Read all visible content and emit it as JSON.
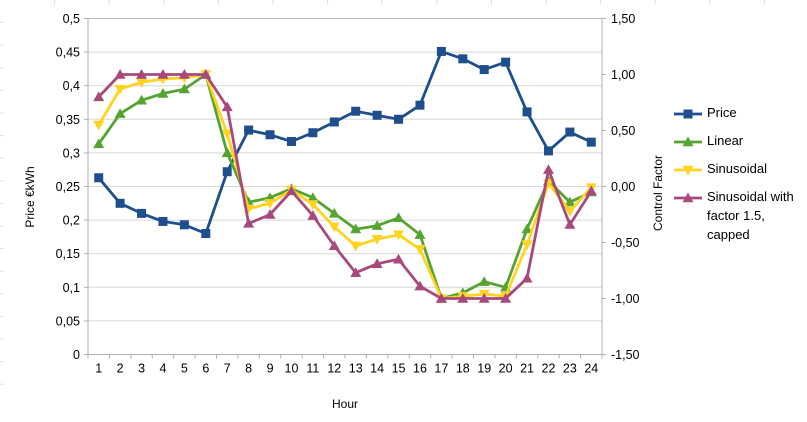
{
  "chart_data": {
    "type": "line",
    "title": "",
    "xlabel": "Hour",
    "legend_position": "right",
    "grid": "horizontal",
    "categories": [
      "1",
      "2",
      "3",
      "4",
      "5",
      "6",
      "7",
      "8",
      "9",
      "10",
      "11",
      "12",
      "13",
      "14",
      "15",
      "16",
      "17",
      "18",
      "19",
      "20",
      "21",
      "22",
      "23",
      "24"
    ],
    "axes": {
      "left": {
        "label": "Price €kWh",
        "min": 0,
        "max": 0.5,
        "tick_values": [
          0,
          0.05,
          0.1,
          0.15,
          0.2,
          0.25,
          0.3,
          0.35,
          0.4,
          0.45,
          0.5
        ],
        "tick_labels": [
          "0",
          "0,05",
          "0,1",
          "0,15",
          "0,2",
          "0,25",
          "0,3",
          "0,35",
          "0,4",
          "0,45",
          "0,5"
        ]
      },
      "right": {
        "label": "Control Factor",
        "min": -1.5,
        "max": 1.5,
        "tick_values": [
          -1.5,
          -1,
          -0.5,
          0,
          0.5,
          1,
          1.5
        ],
        "tick_labels": [
          "-1,50",
          "-1,00",
          "-0,50",
          "0,00",
          "0,50",
          "1,00",
          "1,50"
        ]
      }
    },
    "series": [
      {
        "name": "Price",
        "axis": "left",
        "color": "#1f4e8c",
        "marker": "square",
        "values": [
          0.263,
          0.225,
          0.21,
          0.198,
          0.193,
          0.18,
          0.272,
          0.334,
          0.327,
          0.317,
          0.33,
          0.346,
          0.362,
          0.356,
          0.35,
          0.371,
          0.451,
          0.44,
          0.424,
          0.435,
          0.361,
          0.303,
          0.331,
          0.316
        ]
      },
      {
        "name": "Linear",
        "axis": "right",
        "color": "#55a431",
        "marker": "triangle-up",
        "values": [
          0.38,
          0.65,
          0.77,
          0.83,
          0.87,
          1.0,
          0.3,
          -0.14,
          -0.1,
          -0.02,
          -0.1,
          -0.24,
          -0.38,
          -0.35,
          -0.28,
          -0.43,
          -1.0,
          -0.95,
          -0.85,
          -0.9,
          -0.38,
          0.05,
          -0.14,
          -0.05
        ]
      },
      {
        "name": "Sinusoidal",
        "axis": "right",
        "color": "#ffd320",
        "marker": "triangle-down",
        "values": [
          0.55,
          0.87,
          0.93,
          0.96,
          0.97,
          1.0,
          0.47,
          -0.2,
          -0.15,
          -0.03,
          -0.16,
          -0.36,
          -0.53,
          -0.47,
          -0.43,
          -0.56,
          -1.0,
          -0.98,
          -0.96,
          -0.98,
          -0.52,
          0.03,
          -0.22,
          -0.01
        ]
      },
      {
        "name": "Sinusoidal with factor 1.5, capped",
        "axis": "right",
        "color": "#a8497c",
        "marker": "triangle-up",
        "values": [
          0.8,
          1.0,
          1.0,
          1.0,
          1.0,
          1.0,
          0.71,
          -0.33,
          -0.25,
          -0.04,
          -0.26,
          -0.53,
          -0.77,
          -0.69,
          -0.65,
          -0.89,
          -1.0,
          -1.0,
          -1.0,
          -1.0,
          -0.82,
          0.15,
          -0.34,
          -0.04
        ]
      }
    ]
  },
  "style": {
    "gridline_color": "#d6d6d6",
    "top_gridline_color": "#b9b9b9",
    "axis_color": "#b0b0b0",
    "background_artifact_color": "#dcdcdc",
    "text_color": "#000000"
  }
}
